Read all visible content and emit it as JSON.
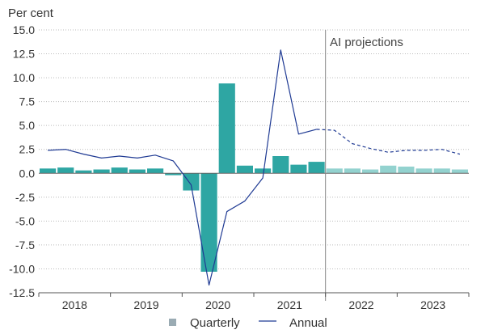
{
  "chart_data": {
    "type": "bar+line",
    "ylabel": "Per cent",
    "ylim": [
      -12.5,
      15.0
    ],
    "yticks": [
      "15.0",
      "12.5",
      "10.0",
      "7.5",
      "5.0",
      "2.5",
      "0.0",
      "-2.5",
      "-5.0",
      "-7.5",
      "-10.0",
      "-12.5"
    ],
    "ytick_values": [
      15,
      12.5,
      10,
      7.5,
      5,
      2.5,
      0,
      -2.5,
      -5,
      -7.5,
      -10,
      -12.5
    ],
    "years": [
      "2018",
      "2019",
      "2020",
      "2021",
      "2022",
      "2023"
    ],
    "quarters": [
      "2018Q1",
      "2018Q2",
      "2018Q3",
      "2018Q4",
      "2019Q1",
      "2019Q2",
      "2019Q3",
      "2019Q4",
      "2020Q1",
      "2020Q2",
      "2020Q3",
      "2020Q4",
      "2021Q1",
      "2021Q2",
      "2021Q3",
      "2021Q4",
      "2022Q1",
      "2022Q2",
      "2022Q3",
      "2022Q4",
      "2023Q1",
      "2023Q2",
      "2023Q3",
      "2023Q4"
    ],
    "projection_start_index": 16,
    "projection_label": "AI projections",
    "series": [
      {
        "name": "Quarterly",
        "type": "bar",
        "color": "#2ea6a3",
        "projection_color": "#93d2cf",
        "values": [
          0.5,
          0.6,
          0.3,
          0.4,
          0.6,
          0.4,
          0.5,
          -0.2,
          -1.8,
          -10.3,
          9.4,
          0.8,
          0.5,
          1.8,
          0.9,
          1.2,
          0.5,
          0.5,
          0.4,
          0.8,
          0.7,
          0.5,
          0.5,
          0.4
        ]
      },
      {
        "name": "Annual",
        "type": "line",
        "color": "#1f3a93",
        "values": [
          2.4,
          2.5,
          2.0,
          1.6,
          1.8,
          1.6,
          1.9,
          1.3,
          -1.2,
          -11.7,
          -4.0,
          -2.9,
          -0.5,
          12.9,
          4.1,
          4.6,
          4.5,
          3.1,
          2.6,
          2.2,
          2.4,
          2.4,
          2.5,
          2.0
        ]
      }
    ],
    "legend": {
      "placement": "bottom-center",
      "items": [
        "Quarterly",
        "Annual"
      ]
    }
  },
  "colors": {
    "bar": "#2ea6a3",
    "bar_projection": "#93d2cf",
    "line": "#1f3a93",
    "axis": "#555555",
    "grid": "#bbbbbb",
    "divider": "#888888",
    "legend_square": "#9aabb3"
  }
}
